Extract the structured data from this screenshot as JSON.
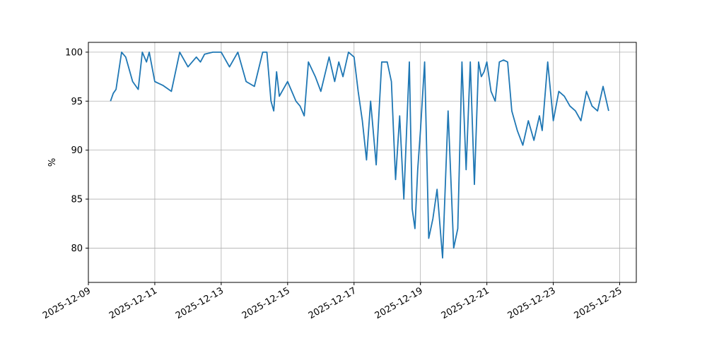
{
  "chart_data": {
    "type": "line",
    "title": "",
    "xlabel": "",
    "ylabel": "%",
    "grid": true,
    "legend": "none",
    "line_color": "#1f77b4",
    "x_ticks": [
      "2025-12-09",
      "2025-12-11",
      "2025-12-13",
      "2025-12-15",
      "2025-12-17",
      "2025-12-19",
      "2025-12-21",
      "2025-12-23",
      "2025-12-25"
    ],
    "y_ticks": [
      80,
      85,
      90,
      95,
      100
    ],
    "xlim": [
      "2025-12-09 00:00",
      "2025-12-25 12:00"
    ],
    "ylim": [
      76.5,
      101
    ],
    "series": [
      {
        "x": [
          "2025-12-09 16:00",
          "2025-12-09 18:00",
          "2025-12-09 20:00",
          "2025-12-10 00:00",
          "2025-12-10 03:00",
          "2025-12-10 08:00",
          "2025-12-10 12:00",
          "2025-12-10 15:00",
          "2025-12-10 18:00",
          "2025-12-10 20:00",
          "2025-12-10 22:00",
          "2025-12-11 00:00",
          "2025-12-11 03:00",
          "2025-12-11 06:00",
          "2025-12-11 09:00",
          "2025-12-11 12:00",
          "2025-12-11 18:00",
          "2025-12-12 00:00",
          "2025-12-12 06:00",
          "2025-12-12 09:00",
          "2025-12-12 12:00",
          "2025-12-12 18:00",
          "2025-12-13 00:00",
          "2025-12-13 06:00",
          "2025-12-13 12:00",
          "2025-12-13 18:00",
          "2025-12-14 00:00",
          "2025-12-14 06:00",
          "2025-12-14 09:00",
          "2025-12-14 12:00",
          "2025-12-14 14:00",
          "2025-12-14 16:00",
          "2025-12-14 18:00",
          "2025-12-15 00:00",
          "2025-12-15 03:00",
          "2025-12-15 06:00",
          "2025-12-15 09:00",
          "2025-12-15 12:00",
          "2025-12-15 15:00",
          "2025-12-15 20:00",
          "2025-12-16 00:00",
          "2025-12-16 06:00",
          "2025-12-16 10:00",
          "2025-12-16 13:00",
          "2025-12-16 16:00",
          "2025-12-16 20:00",
          "2025-12-17 00:00",
          "2025-12-17 03:00",
          "2025-12-17 06:00",
          "2025-12-17 09:00",
          "2025-12-17 12:00",
          "2025-12-17 16:00",
          "2025-12-17 20:00",
          "2025-12-18 00:00",
          "2025-12-18 03:00",
          "2025-12-18 06:00",
          "2025-12-18 09:00",
          "2025-12-18 12:00",
          "2025-12-18 16:00",
          "2025-12-18 18:00",
          "2025-12-18 20:00",
          "2025-12-18 22:00",
          "2025-12-19 00:00",
          "2025-12-19 03:00",
          "2025-12-19 06:00",
          "2025-12-19 09:00",
          "2025-12-19 12:00",
          "2025-12-19 16:00",
          "2025-12-19 20:00",
          "2025-12-20 00:00",
          "2025-12-20 03:00",
          "2025-12-20 06:00",
          "2025-12-20 09:00",
          "2025-12-20 12:00",
          "2025-12-20 15:00",
          "2025-12-20 18:00",
          "2025-12-20 20:00",
          "2025-12-20 22:00",
          "2025-12-21 00:00",
          "2025-12-21 03:00",
          "2025-12-21 06:00",
          "2025-12-21 09:00",
          "2025-12-21 12:00",
          "2025-12-21 15:00",
          "2025-12-21 18:00",
          "2025-12-21 22:00",
          "2025-12-22 02:00",
          "2025-12-22 06:00",
          "2025-12-22 10:00",
          "2025-12-22 14:00",
          "2025-12-22 16:00",
          "2025-12-22 20:00",
          "2025-12-23 00:00",
          "2025-12-23 04:00",
          "2025-12-23 08:00",
          "2025-12-23 12:00",
          "2025-12-23 16:00",
          "2025-12-23 20:00",
          "2025-12-24 00:00",
          "2025-12-24 04:00",
          "2025-12-24 08:00",
          "2025-12-24 12:00",
          "2025-12-24 16:00"
        ],
        "values": [
          95.0,
          95.8,
          96.2,
          100.0,
          99.5,
          97.0,
          96.2,
          100.0,
          99.0,
          100.0,
          98.5,
          97.0,
          96.8,
          96.6,
          96.3,
          96.0,
          100.0,
          98.5,
          99.5,
          99.0,
          99.8,
          100.0,
          100.0,
          98.5,
          100.0,
          97.0,
          96.5,
          100.0,
          100.0,
          95.0,
          94.0,
          98.0,
          95.5,
          97.0,
          96.0,
          95.0,
          94.5,
          93.5,
          99.0,
          97.5,
          96.0,
          99.5,
          97.0,
          99.0,
          97.5,
          100.0,
          99.5,
          96.0,
          93.0,
          89.0,
          95.0,
          88.5,
          99.0,
          99.0,
          97.0,
          87.0,
          93.5,
          85.0,
          99.0,
          84.0,
          82.0,
          88.0,
          92.0,
          99.0,
          81.0,
          83.0,
          86.0,
          79.0,
          94.0,
          80.0,
          82.0,
          99.0,
          88.0,
          99.0,
          86.5,
          99.0,
          97.5,
          98.0,
          99.0,
          96.0,
          95.0,
          99.0,
          99.2,
          99.0,
          94.0,
          92.0,
          90.5,
          93.0,
          91.0,
          93.5,
          92.0,
          99.0,
          93.0,
          96.0,
          95.5,
          94.5,
          94.0,
          93.0,
          96.0,
          94.5,
          94.0,
          96.5,
          94.0
        ]
      }
    ]
  }
}
